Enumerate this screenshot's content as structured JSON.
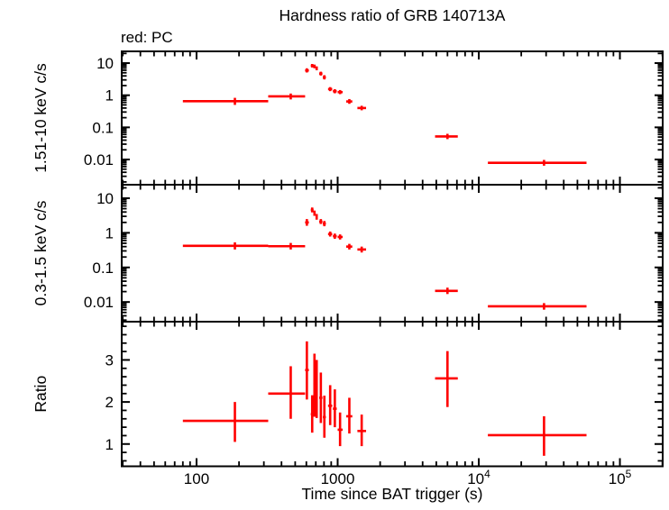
{
  "figure": {
    "title": "Hardness ratio of GRB 140713A",
    "legend_label": "red: PC",
    "x_axis_label": "Time since BAT trigger (s)",
    "colors": {
      "data_points": "#ff0000",
      "frame": "#000000",
      "background": "#ffffff",
      "text": "#000000"
    }
  },
  "chart_data": {
    "type": "scatter",
    "title": "Hardness ratio of GRB 140713A",
    "legend": "red: PC",
    "xlabel": "Time since BAT trigger (s)",
    "xscale": "log",
    "xlim": [
      29.5,
      201000
    ],
    "xticks": [
      {
        "value": 100,
        "label": "100"
      },
      {
        "value": 1000,
        "label": "1000"
      },
      {
        "value": 10000,
        "label": "10^4"
      },
      {
        "value": 100000,
        "label": "10^5"
      }
    ],
    "point_color": "#ff0000",
    "grid": false,
    "time_bins": {
      "t": [
        187,
        465,
        605,
        660,
        685,
        710,
        760,
        805,
        885,
        955,
        1040,
        1210,
        1480,
        6000,
        29000
      ],
      "t_lo": [
        80,
        322,
        588,
        645,
        672,
        698,
        740,
        785,
        855,
        925,
        1000,
        1150,
        1380,
        4900,
        11600
      ],
      "t_hi": [
        322,
        588,
        625,
        675,
        698,
        722,
        780,
        825,
        915,
        985,
        1085,
        1270,
        1590,
        7100,
        58000
      ]
    },
    "panels": [
      {
        "name": "hard_band_rate",
        "ylabel": "1.51-10 keV c/s",
        "yscale": "log",
        "ylim": [
          0.00164,
          23.2
        ],
        "yticks": [
          {
            "value": 10,
            "label": "10"
          },
          {
            "value": 1,
            "label": "1"
          },
          {
            "value": 0.1,
            "label": "0.1"
          },
          {
            "value": 0.01,
            "label": "0.01"
          }
        ],
        "y": [
          0.65,
          0.92,
          5.9,
          8.3,
          7.9,
          6.9,
          4.7,
          3.6,
          1.55,
          1.33,
          1.25,
          0.64,
          0.4,
          0.052,
          0.0079
        ],
        "y_lo": [
          0.5,
          0.74,
          5.1,
          7.3,
          6.9,
          6.0,
          4.1,
          3.1,
          1.34,
          1.15,
          1.08,
          0.54,
          0.34,
          0.043,
          0.0064
        ],
        "y_hi": [
          0.83,
          1.13,
          6.9,
          9.4,
          9.0,
          7.9,
          5.4,
          4.2,
          1.79,
          1.54,
          1.45,
          0.76,
          0.47,
          0.063,
          0.0097
        ]
      },
      {
        "name": "soft_band_rate",
        "ylabel": "0.3-1.5 keV c/s",
        "yscale": "log",
        "ylim": [
          0.0027,
          24.6
        ],
        "yticks": [
          {
            "value": 10,
            "label": "10"
          },
          {
            "value": 1,
            "label": "1"
          },
          {
            "value": 0.1,
            "label": "0.1"
          },
          {
            "value": 0.01,
            "label": "0.01"
          }
        ],
        "y": [
          0.42,
          0.41,
          2.0,
          4.6,
          3.7,
          2.9,
          2.1,
          1.85,
          0.92,
          0.8,
          0.76,
          0.4,
          0.33,
          0.021,
          0.0075
        ],
        "y_lo": [
          0.33,
          0.33,
          1.6,
          3.9,
          3.1,
          2.4,
          1.8,
          1.55,
          0.78,
          0.67,
          0.64,
          0.33,
          0.27,
          0.017,
          0.006
        ],
        "y_hi": [
          0.53,
          0.51,
          2.5,
          5.4,
          4.4,
          3.5,
          2.5,
          2.2,
          1.09,
          0.95,
          0.9,
          0.48,
          0.4,
          0.026,
          0.0093
        ]
      },
      {
        "name": "ratio",
        "ylabel": "Ratio",
        "yscale": "linear",
        "ylim": [
          0.47,
          3.91
        ],
        "minor_tick_step": 0.2,
        "yticks": [
          {
            "value": 3,
            "label": "3"
          },
          {
            "value": 2,
            "label": "2"
          },
          {
            "value": 1,
            "label": "1"
          }
        ],
        "y": [
          1.55,
          2.2,
          2.76,
          1.71,
          2.43,
          2.31,
          2.1,
          1.64,
          1.91,
          1.84,
          1.34,
          1.66,
          1.31,
          2.56,
          1.21
        ],
        "y_lo": [
          1.05,
          1.6,
          2.06,
          1.27,
          1.65,
          1.62,
          1.5,
          1.15,
          1.45,
          1.4,
          0.95,
          1.25,
          0.95,
          1.88,
          0.72
        ],
        "y_hi": [
          2.0,
          2.85,
          3.44,
          2.16,
          3.15,
          3.0,
          2.7,
          2.15,
          2.4,
          2.3,
          1.75,
          2.1,
          1.7,
          3.21,
          1.66
        ]
      }
    ]
  }
}
